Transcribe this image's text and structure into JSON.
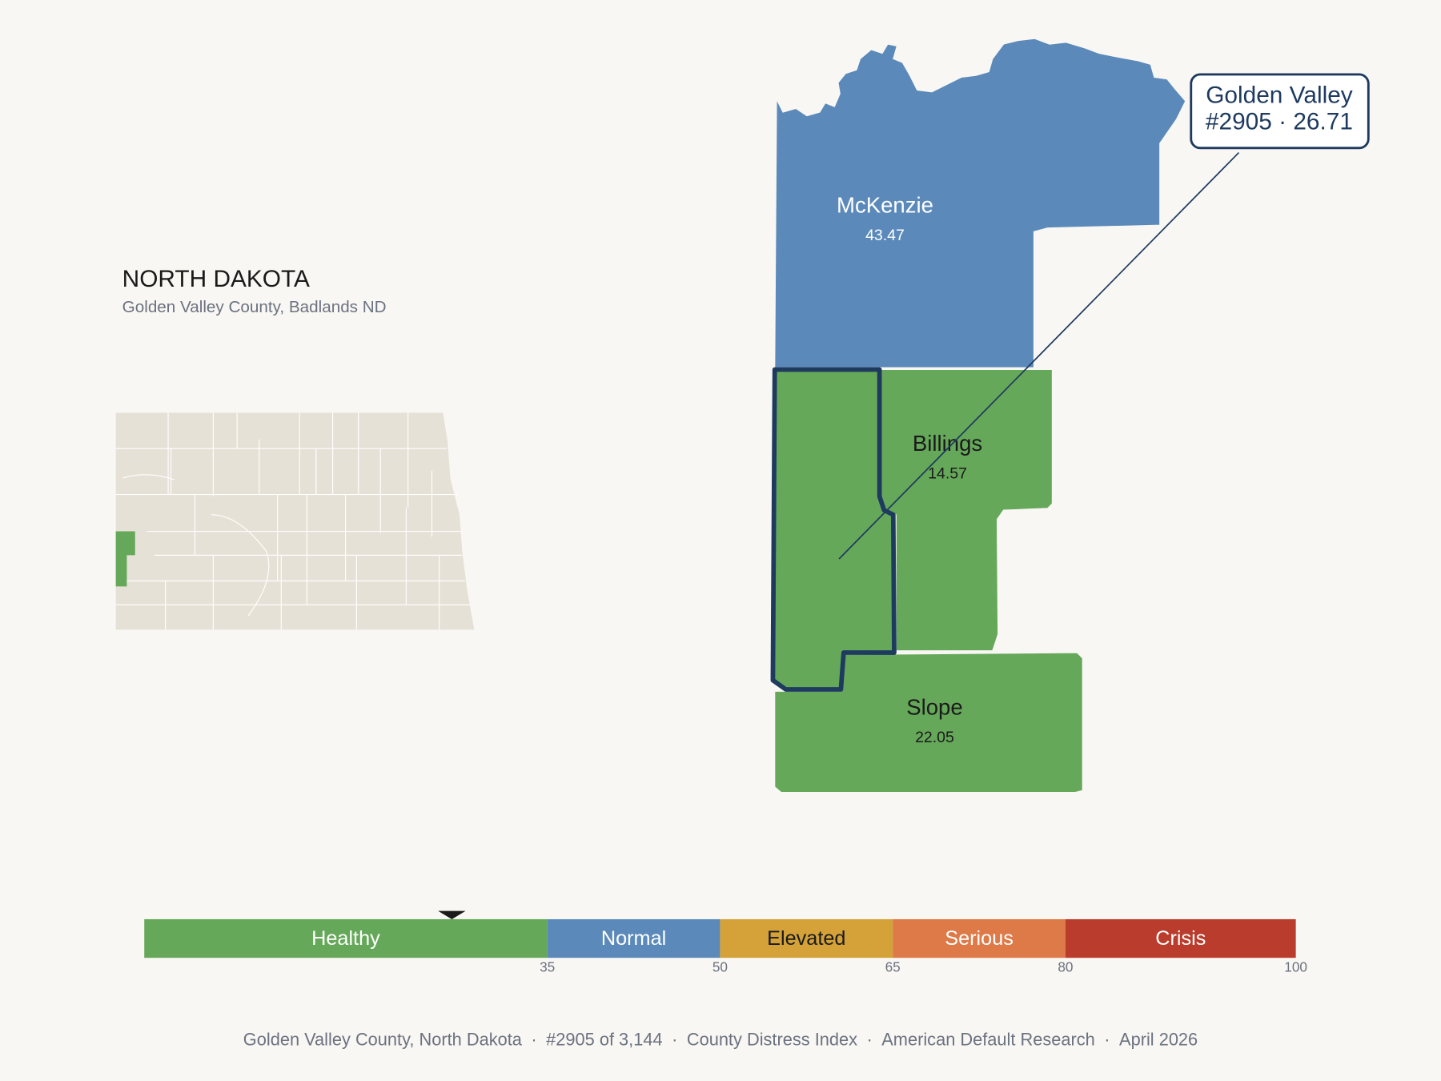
{
  "header": {
    "title": "NORTH DAKOTA",
    "subtitle": "Golden Valley County, Badlands ND"
  },
  "counties": [
    {
      "name": "McKenzie",
      "value": 43.47,
      "color": "#5b8aba",
      "label_color": "#ffffff"
    },
    {
      "name": "Billings",
      "value": 14.57,
      "color": "#66a85a",
      "label_color": "#1a1a1a"
    },
    {
      "name": "Slope",
      "value": 22.05,
      "color": "#66a85a",
      "label_color": "#1a1a1a"
    }
  ],
  "selected": {
    "name": "Golden Valley",
    "detail": "#2905 · 26.71",
    "color": "#66a85a",
    "outline": "#1e3a5f"
  },
  "scale": {
    "xlim": [
      0,
      100
    ],
    "ticks": [
      35,
      50,
      65,
      80,
      100
    ],
    "marker": 26.71,
    "segments": [
      {
        "label": "Healthy",
        "color": "#66a85a",
        "text_color": "#ffffff"
      },
      {
        "label": "Normal",
        "color": "#5b8aba",
        "text_color": "#ffffff"
      },
      {
        "label": "Elevated",
        "color": "#d4a239",
        "text_color": "#1a1a1a"
      },
      {
        "label": "Serious",
        "color": "#dd7a48",
        "text_color": "#ffffff"
      },
      {
        "label": "Crisis",
        "color": "#b93c2c",
        "text_color": "#ffffff"
      }
    ]
  },
  "footer": {
    "separator": "·",
    "items": [
      "Golden Valley County, North Dakota",
      "#2905 of 3,144",
      "County Distress Index",
      "American Default Research",
      "April 2026"
    ]
  }
}
